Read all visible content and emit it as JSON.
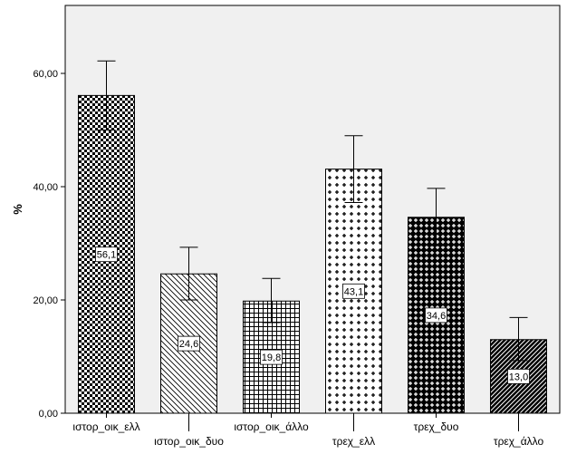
{
  "chart_data": {
    "type": "bar",
    "ylabel": "%",
    "ylim": [
      0,
      72
    ],
    "grid": false,
    "y_ticks": [
      "0,00",
      "20,00",
      "40,00",
      "60,00"
    ],
    "y_tick_values": [
      0,
      20,
      40,
      60
    ],
    "categories": [
      "ιστορ_οικ_ελλ",
      "ιστορ_οικ_δυο",
      "ιστορ_οικ_άλλο",
      "τρεχ_ελλ",
      "τρεχ_δυο",
      "τρεχ_άλλο"
    ],
    "values": [
      56.1,
      24.6,
      19.8,
      43.1,
      34.6,
      13.0
    ],
    "value_labels": [
      "56,1",
      "24,6",
      "19,8",
      "43,1",
      "34,6",
      "13,0"
    ],
    "error_low": [
      50.0,
      20.0,
      16.0,
      37.2,
      29.6,
      9.3
    ],
    "error_high": [
      62.2,
      29.3,
      23.8,
      49.0,
      39.7,
      16.9
    ],
    "patterns": [
      "checker",
      "diagonal",
      "grid",
      "plus",
      "dense-checker",
      "dark-diagonal"
    ]
  }
}
